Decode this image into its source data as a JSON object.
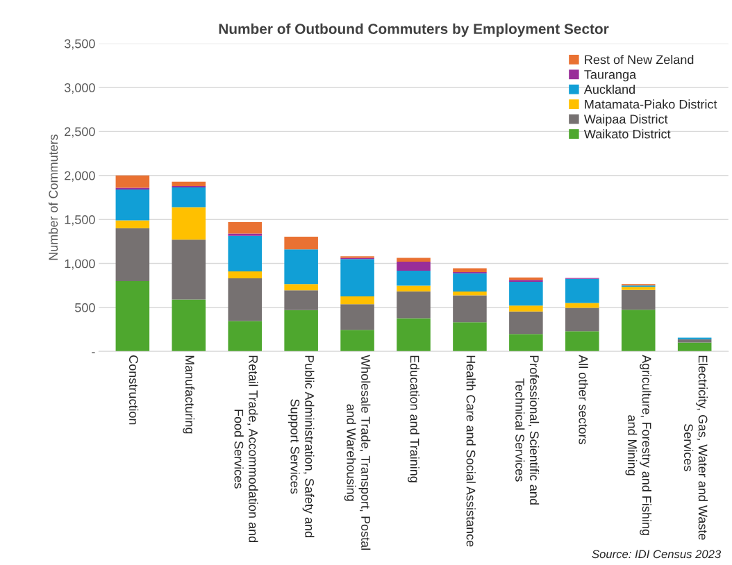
{
  "chart_data": {
    "type": "bar",
    "stacked": true,
    "title": "Number of Outbound Commuters by Employment Sector",
    "ylabel": "Number of Commuters",
    "categories": [
      "Construction",
      "Manufacturing",
      "Retail Trade, Accommodation and\nFood Services",
      "Public Administration, Safety and\nSupport Services",
      "Wholesale Trade, Transport, Postal\nand Warehousing",
      "Education and Training",
      "Health Care and Social Assistance",
      "Professional, Scientific and\nTechnical Services",
      "All other sectors",
      "Agriculture, Forestry and Fishing\nand Mining",
      "Electricity, Gas, Water and Waste\nServices"
    ],
    "series": [
      {
        "name": "Waikato District",
        "color": "#4ea72e",
        "values": [
          800,
          590,
          345,
          470,
          245,
          377,
          332,
          197,
          229,
          473,
          101
        ]
      },
      {
        "name": "Waipaa District",
        "color": "#767171",
        "values": [
          600,
          680,
          485,
          225,
          292,
          306,
          306,
          258,
          266,
          226,
          37
        ]
      },
      {
        "name": "Matamata-Piako District",
        "color": "#ffc000",
        "values": [
          90,
          370,
          80,
          70,
          88,
          64,
          42,
          66,
          56,
          35,
          null
        ]
      },
      {
        "name": "Auckland",
        "color": "#119fd6",
        "values": [
          350,
          225,
          405,
          395,
          425,
          170,
          208,
          271,
          273,
          16,
          19
        ]
      },
      {
        "name": "Tauranga",
        "color": "#992e99",
        "values": [
          20,
          15,
          25,
          0,
          13,
          104,
          13,
          21,
          11,
          null,
          0
        ]
      },
      {
        "name": "Rest of New Zeland",
        "color": "#e97132",
        "values": [
          140,
          50,
          130,
          145,
          19,
          42,
          45,
          27,
          null,
          16,
          0
        ]
      }
    ],
    "ylim": [
      0,
      3500
    ],
    "yticks": [
      {
        "value": 0,
        "label": "-"
      },
      500,
      {
        "value": 1000,
        "label": "1,000"
      },
      {
        "value": 1500,
        "label": "1,500"
      },
      {
        "value": 2000,
        "label": "2,000"
      },
      {
        "value": 2500,
        "label": "2,500"
      },
      {
        "value": 3000,
        "label": "3,000"
      },
      {
        "value": 3500,
        "label": "3,500"
      }
    ],
    "grid": "y",
    "legend": "top right",
    "annotations": [
      "Source: IDI Census 2023"
    ]
  }
}
